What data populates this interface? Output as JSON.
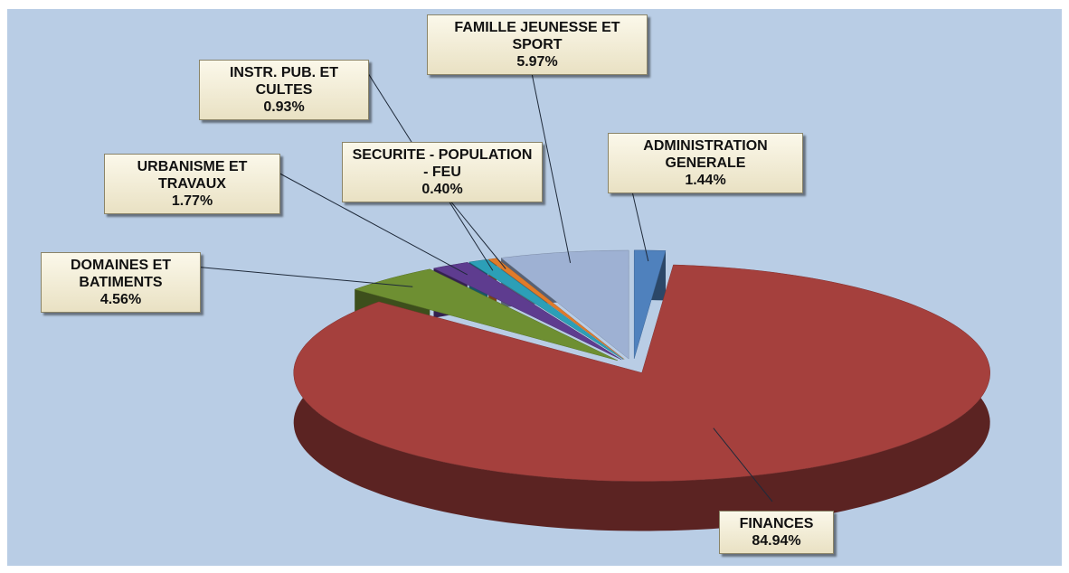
{
  "chart_data": {
    "type": "pie",
    "categories": [
      "ADMINISTRATION GENERALE",
      "FINANCES",
      "DOMAINES ET BATIMENTS",
      "URBANISME ET TRAVAUX",
      "INSTR. PUB. ET CULTES",
      "SECURITE - POPULATION - FEU",
      "FAMILLE JEUNESSE ET SPORT"
    ],
    "values": [
      1.44,
      84.94,
      4.56,
      1.77,
      0.93,
      0.4,
      5.97
    ],
    "value_labels": [
      "1.44%",
      "84.94%",
      "4.56%",
      "1.77%",
      "0.93%",
      "0.40%",
      "5.97%"
    ],
    "colors": [
      "#4f81bd",
      "#a5403d",
      "#6e8f32",
      "#5e3c8f",
      "#2c9fb7",
      "#e07b2a",
      "#9eb1d3"
    ],
    "three_d": true
  }
}
